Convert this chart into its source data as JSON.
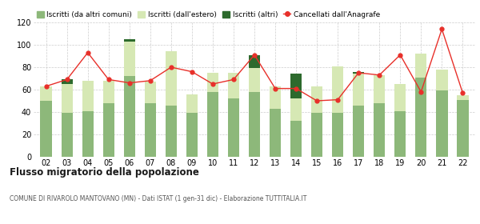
{
  "years": [
    "02",
    "03",
    "04",
    "05",
    "06",
    "07",
    "08",
    "09",
    "10",
    "11",
    "12",
    "13",
    "14",
    "15",
    "16",
    "17",
    "18",
    "19",
    "20",
    "21",
    "22"
  ],
  "iscritti_altri_comuni": [
    50,
    39,
    41,
    48,
    72,
    48,
    46,
    39,
    58,
    52,
    58,
    43,
    32,
    39,
    39,
    46,
    48,
    41,
    71,
    59,
    51
  ],
  "iscritti_estero": [
    13,
    26,
    27,
    20,
    31,
    19,
    48,
    17,
    17,
    23,
    21,
    20,
    20,
    24,
    42,
    28,
    25,
    24,
    21,
    19,
    4
  ],
  "iscritti_altri": [
    0,
    4,
    0,
    0,
    2,
    0,
    0,
    0,
    0,
    0,
    12,
    0,
    22,
    0,
    0,
    2,
    0,
    0,
    0,
    0,
    0
  ],
  "cancellati": [
    63,
    69,
    93,
    69,
    66,
    68,
    80,
    76,
    65,
    69,
    91,
    61,
    61,
    50,
    51,
    75,
    73,
    91,
    58,
    114,
    57
  ],
  "color_altri_comuni": "#8db87a",
  "color_estero": "#d6e8b4",
  "color_altri": "#2d6a2d",
  "color_cancellati": "#e8302a",
  "ylim": [
    0,
    120
  ],
  "yticks": [
    0,
    20,
    40,
    60,
    80,
    100,
    120
  ],
  "title": "Flusso migratorio della popolazione",
  "subtitle": "COMUNE DI RIVAROLO MANTOVANO (MN) - Dati ISTAT (1 gen-31 dic) - Elaborazione TUTTITALIA.IT",
  "legend_labels": [
    "Iscritti (da altri comuni)",
    "Iscritti (dall'estero)",
    "Iscritti (altri)",
    "Cancellati dall'Anagrafe"
  ],
  "background_color": "#ffffff",
  "grid_color": "#cccccc"
}
